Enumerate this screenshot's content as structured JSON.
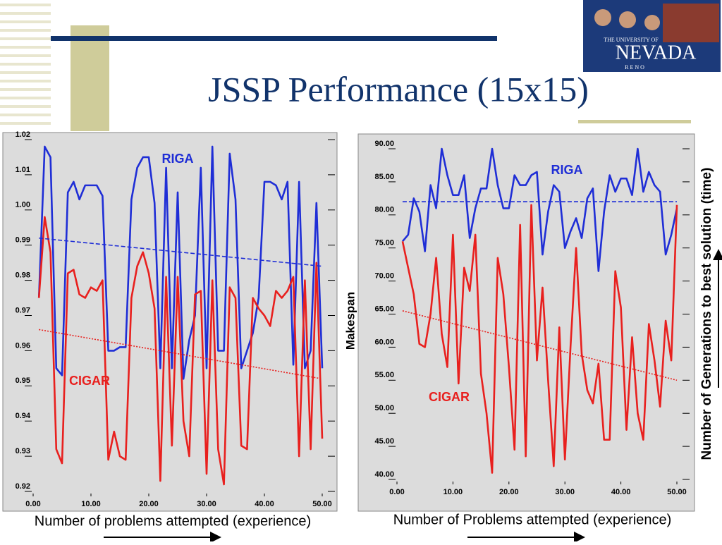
{
  "slide": {
    "title": "JSSP Performance (15x15)"
  },
  "logo": {
    "top": "THE UNIVERSITY OF",
    "name": "NEVADA",
    "sub": "R E N O"
  },
  "chart_data": [
    {
      "type": "line",
      "x_label": "Number of problems attempted (experience)",
      "xlim": [
        0,
        50
      ],
      "ylim": [
        0.92,
        1.02
      ],
      "xticks": [
        {
          "value": 0,
          "label": "0.00"
        },
        {
          "value": 10,
          "label": "10.00"
        },
        {
          "value": 20,
          "label": "20.00"
        },
        {
          "value": 30,
          "label": "30.00"
        },
        {
          "value": 40,
          "label": "40.00"
        },
        {
          "value": 50,
          "label": "50.00"
        }
      ],
      "yticks": [
        0.92,
        0.93,
        0.94,
        0.95,
        0.96,
        0.97,
        0.98,
        0.99,
        {
          "value": 1,
          "label": "1.00"
        },
        1.01,
        1.02
      ],
      "x": [
        1,
        2,
        3,
        4,
        5,
        6,
        7,
        8,
        9,
        10,
        11,
        12,
        13,
        14,
        15,
        16,
        17,
        18,
        19,
        20,
        21,
        22,
        23,
        24,
        25,
        26,
        27,
        28,
        29,
        30,
        31,
        32,
        33,
        34,
        35,
        36,
        37,
        38,
        39,
        40,
        41,
        42,
        43,
        44,
        45,
        46,
        47,
        48,
        49,
        50
      ],
      "series": [
        {
          "name": "RIGA",
          "color": "#1f2ed6",
          "values": [
            0.975,
            1.018,
            1.015,
            0.955,
            0.953,
            1.005,
            1.008,
            1.003,
            1.007,
            1.007,
            1.007,
            1.004,
            0.96,
            0.96,
            0.961,
            0.961,
            1.003,
            1.012,
            1.015,
            1.015,
            1.002,
            0.955,
            1.012,
            0.955,
            1.005,
            0.952,
            0.963,
            0.97,
            1.012,
            0.955,
            1.018,
            0.96,
            0.96,
            1.016,
            1.003,
            0.955,
            0.96,
            0.965,
            0.975,
            1.008,
            1.008,
            1.007,
            1.003,
            1.008,
            0.956,
            1.008,
            0.955,
            0.96,
            1.002,
            0.955
          ]
        },
        {
          "name": "CIGAR",
          "color": "#e8201e",
          "values": [
            0.975,
            0.998,
            0.988,
            0.932,
            0.928,
            0.982,
            0.983,
            0.976,
            0.975,
            0.978,
            0.977,
            0.98,
            0.929,
            0.937,
            0.93,
            0.929,
            0.975,
            0.984,
            0.988,
            0.982,
            0.972,
            0.923,
            0.981,
            0.933,
            0.981,
            0.94,
            0.93,
            0.976,
            0.977,
            0.925,
            0.98,
            0.932,
            0.922,
            0.978,
            0.975,
            0.933,
            0.932,
            0.975,
            0.972,
            0.97,
            0.967,
            0.977,
            0.975,
            0.977,
            0.981,
            0.93,
            0.98,
            0.932,
            0.985,
            0.935
          ]
        },
        {
          "color": "#1f2ed6",
          "dash": "dashed",
          "x": [
            1,
            50
          ],
          "values": [
            0.992,
            0.984
          ]
        },
        {
          "color": "#e8201e",
          "dash": "dotted",
          "x": [
            1,
            50
          ],
          "values": [
            0.966,
            0.952
          ]
        }
      ]
    },
    {
      "type": "line",
      "x_label": "Number of Problems attempted (experience)",
      "y_label": "Makespan",
      "side_label": "Number of Generations to best solution (time)",
      "xlim": [
        0,
        50
      ],
      "ylim": [
        40,
        90
      ],
      "xticks": [
        {
          "value": 0,
          "label": "0.00"
        },
        {
          "value": 10,
          "label": "10.00"
        },
        {
          "value": 20,
          "label": "20.00"
        },
        {
          "value": 30,
          "label": "30.00"
        },
        {
          "value": 40,
          "label": "40.00"
        },
        {
          "value": 50,
          "label": "50.00"
        }
      ],
      "yticks": [
        {
          "value": 40,
          "label": "40.00"
        },
        {
          "value": 45,
          "label": "45.00"
        },
        {
          "value": 50,
          "label": "50.00"
        },
        {
          "value": 55,
          "label": "55.00"
        },
        {
          "value": 60,
          "label": "60.00"
        },
        {
          "value": 65,
          "label": "65.00"
        },
        {
          "value": 70,
          "label": "70.00"
        },
        {
          "value": 75,
          "label": "75.00"
        },
        {
          "value": 80,
          "label": "80.00"
        },
        {
          "value": 85,
          "label": "85.00"
        },
        {
          "value": 90,
          "label": "90.00"
        }
      ],
      "x": [
        1,
        2,
        3,
        4,
        5,
        6,
        7,
        8,
        9,
        10,
        11,
        12,
        13,
        14,
        15,
        16,
        17,
        18,
        19,
        20,
        21,
        22,
        23,
        24,
        25,
        26,
        27,
        28,
        29,
        30,
        31,
        32,
        33,
        34,
        35,
        36,
        37,
        38,
        39,
        40,
        41,
        42,
        43,
        44,
        45,
        46,
        47,
        48,
        49,
        50
      ],
      "series": [
        {
          "name": "RIGA",
          "color": "#1f2ed6",
          "values": [
            76,
            77,
            82.5,
            80.5,
            74.5,
            84.5,
            81,
            90,
            86,
            83,
            83,
            86,
            76.5,
            81,
            84,
            84,
            90,
            84.5,
            81,
            81,
            86,
            84.5,
            84.5,
            86,
            86.5,
            74,
            80.5,
            84.5,
            83.5,
            75,
            77.5,
            79.5,
            76.5,
            82.5,
            84,
            71.5,
            80.5,
            86,
            83.5,
            85.5,
            85.5,
            83,
            90,
            83.5,
            86.5,
            84.5,
            83.5,
            74,
            77,
            81
          ]
        },
        {
          "name": "CIGAR",
          "color": "#e8201e",
          "values": [
            76,
            72,
            68,
            60.5,
            60,
            65,
            73.5,
            62,
            57,
            77,
            54.5,
            72,
            68.5,
            77,
            56,
            50,
            41,
            73.5,
            68,
            57,
            44.5,
            78.5,
            43.5,
            81.5,
            58,
            69,
            55,
            42,
            63,
            43,
            60,
            75,
            59,
            53.5,
            51.5,
            57.5,
            46,
            46,
            71.5,
            66,
            47.5,
            61.5,
            50,
            46,
            63.5,
            58,
            51,
            64,
            58,
            81.5
          ]
        },
        {
          "color": "#1f2ed6",
          "dash": "dashed",
          "x": [
            1,
            50
          ],
          "values": [
            82,
            82
          ]
        },
        {
          "color": "#e8201e",
          "dash": "dotted",
          "x": [
            1,
            50
          ],
          "values": [
            65.5,
            55
          ]
        }
      ]
    }
  ]
}
